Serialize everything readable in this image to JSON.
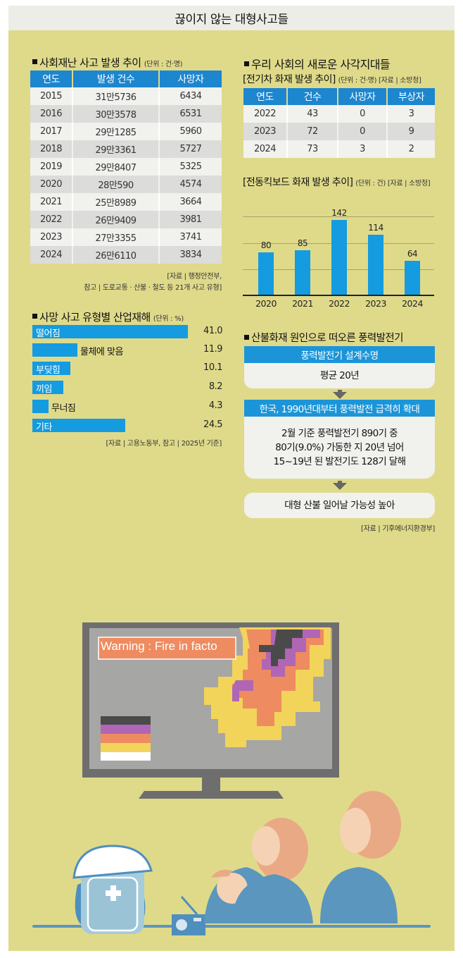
{
  "header": {
    "title": "끊이지 않는 대형사고들"
  },
  "social_disaster": {
    "title": "사회재난 사고 발생 추이",
    "unit": "(단위 : 건·명)",
    "columns": [
      "연도",
      "발생 건수",
      "사망자"
    ],
    "rows": [
      [
        "2015",
        "31만5736",
        "6434"
      ],
      [
        "2016",
        "30만3578",
        "6531"
      ],
      [
        "2017",
        "29만1285",
        "5960"
      ],
      [
        "2018",
        "29만3361",
        "5727"
      ],
      [
        "2019",
        "29만8407",
        "5325"
      ],
      [
        "2020",
        "28만590",
        "4574"
      ],
      [
        "2021",
        "25만8989",
        "3664"
      ],
      [
        "2022",
        "26만9409",
        "3981"
      ],
      [
        "2023",
        "27만3355",
        "3741"
      ],
      [
        "2024",
        "26만6110",
        "3834"
      ]
    ],
    "source_line1": "[자료 | 행정안전부,",
    "source_line2": "참고 | 도로교통 · 산불 · 철도 등 21개 사고 유형]"
  },
  "industrial": {
    "title": "사망 사고 유형별 산업재해",
    "unit": "(단위 : %)",
    "source": "[자료 | 고용노동부, 참고 | 2025년 기준]"
  },
  "new_blind_spots": {
    "title": "우리 사회의 새로운 사각지대들",
    "ev": {
      "title": "[전기차 화재 발생 추이]",
      "unit": "(단위 : 건·명) [자료 | 소방청]",
      "columns": [
        "연도",
        "건수",
        "사망자",
        "부상자"
      ],
      "rows": [
        [
          "2022",
          "43",
          "0",
          "3"
        ],
        [
          "2023",
          "72",
          "0",
          "9"
        ],
        [
          "2024",
          "73",
          "3",
          "2"
        ]
      ]
    },
    "kickboard": {
      "title": "[전동킥보드 화재 발생 추이]",
      "unit": "(단위 : 건) [자료 | 소방청]"
    }
  },
  "wind": {
    "title": "산불화재 원인으로 떠오른 풍력발전기",
    "box1_head": "풍력발전기 설계수명",
    "box1_body": "평균 20년",
    "box2_head": "한국, 1990년대부터 풍력발전 급격히 확대",
    "box2_line1": "2월 기준 풍력발전기 890기 중",
    "box2_line2": "80기(9.0%) 가동한 지 20년 넘어",
    "box2_line3": "15~19년 된 발전기도 128기 달해",
    "box3": "대형 산불 일어날 가능성 높아",
    "source": "[자료 | 기후에너지환경부]"
  },
  "illustration": {
    "tv_warning": "Warning : Fire in facto"
  },
  "colors": {
    "panel": "#DFDA8A",
    "table_header": "#1C86CF",
    "bar": "#149BE0"
  },
  "chart_data": [
    {
      "type": "table",
      "title": "사회재난 사고 발생 추이",
      "unit": "건·명",
      "categories": [
        "2015",
        "2016",
        "2017",
        "2018",
        "2019",
        "2020",
        "2021",
        "2022",
        "2023",
        "2024"
      ],
      "series": [
        {
          "name": "발생 건수",
          "values": [
            315736,
            303578,
            291285,
            293361,
            298407,
            280590,
            258989,
            269409,
            273355,
            266110
          ]
        },
        {
          "name": "사망자",
          "values": [
            6434,
            6531,
            5960,
            5727,
            5325,
            4574,
            3664,
            3981,
            3741,
            3834
          ]
        }
      ],
      "source": "행정안전부"
    },
    {
      "type": "bar",
      "orientation": "horizontal",
      "title": "사망 사고 유형별 산업재해",
      "unit": "%",
      "categories": [
        "떨어짐",
        "물체에 맞음",
        "부딪힘",
        "끼임",
        "무너짐",
        "기타"
      ],
      "values": [
        41.0,
        11.9,
        10.1,
        8.2,
        4.3,
        24.5
      ],
      "value_labels": [
        "41.0",
        "11.9",
        "10.1",
        "8.2",
        "4.3",
        "24.5"
      ],
      "source": "고용노동부, 2025년 기준"
    },
    {
      "type": "table",
      "title": "전기차 화재 발생 추이",
      "unit": "건·명",
      "categories": [
        "2022",
        "2023",
        "2024"
      ],
      "series": [
        {
          "name": "건수",
          "values": [
            43,
            72,
            73
          ]
        },
        {
          "name": "사망자",
          "values": [
            0,
            0,
            3
          ]
        },
        {
          "name": "부상자",
          "values": [
            3,
            9,
            2
          ]
        }
      ],
      "source": "소방청"
    },
    {
      "type": "bar",
      "title": "전동킥보드 화재 발생 추이",
      "unit": "건",
      "categories": [
        "2020",
        "2021",
        "2022",
        "2023",
        "2024"
      ],
      "values": [
        80,
        85,
        142,
        114,
        64
      ],
      "xlabel": "",
      "ylabel": "",
      "ylim": [
        0,
        150
      ],
      "grid": true,
      "source": "소방청"
    }
  ]
}
